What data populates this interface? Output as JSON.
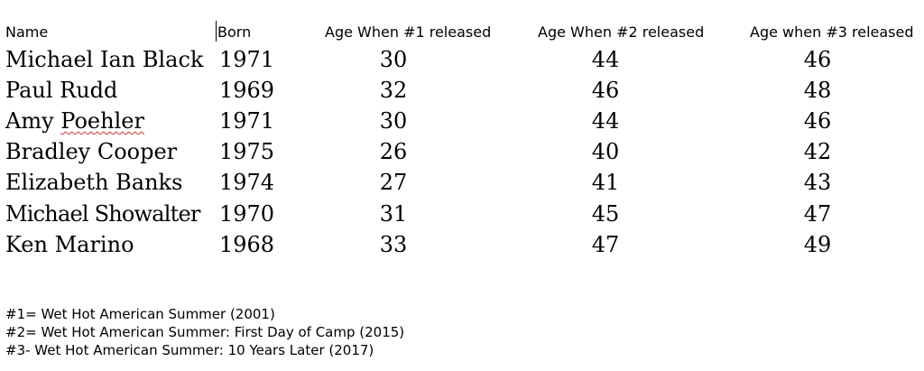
{
  "headers": {
    "name": "Name",
    "born": "Born",
    "age1": "Age When #1 released",
    "age2": "Age When #2 released",
    "age3": "Age when #3 released"
  },
  "rows": [
    {
      "name": "Michael Ian Black",
      "born": "1971",
      "age1": "30",
      "age2": "44",
      "age3": "46"
    },
    {
      "name": "Paul Rudd",
      "born": "1969",
      "age1": "32",
      "age2": "46",
      "age3": "48"
    },
    {
      "name_first": "Amy",
      "name_last": "Poehler",
      "born": "1971",
      "age1": "30",
      "age2": "44",
      "age3": "46"
    },
    {
      "name": "Bradley Cooper",
      "born": "1975",
      "age1": "26",
      "age2": "40",
      "age3": "42"
    },
    {
      "name": "Elizabeth Banks",
      "born": "1974",
      "age1": "27",
      "age2": "41",
      "age3": "43"
    },
    {
      "name": "Michael Showalter",
      "born": "1970",
      "age1": "31",
      "age2": "45",
      "age3": "47"
    },
    {
      "name": "Ken Marino",
      "born": "1968",
      "age1": "33",
      "age2": "47",
      "age3": "49"
    }
  ],
  "notes": [
    "#1= Wet Hot American Summer (2001)",
    "#2= Wet Hot American Summer: First Day of Camp (2015)",
    "#3- Wet Hot American Summer: 10 Years Later (2017)"
  ],
  "colors": {
    "text": "#000000",
    "background": "#ffffff",
    "spellcheck_underline": "#d32f2f"
  }
}
